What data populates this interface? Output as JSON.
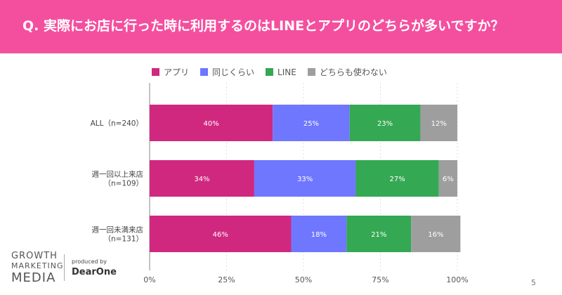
{
  "chart_data": {
    "type": "bar",
    "orientation": "horizontal",
    "stacked": true,
    "title": "Q. 実際にお店に行った時に利用するのはLINEとアプリのどちらが多いですか？",
    "categories": [
      "ALL（n=240）",
      "週一回以上来店\n（n=109）",
      "週一回未満来店\n（n=131）"
    ],
    "series": [
      {
        "name": "アプリ",
        "color": "#d0287f",
        "values": [
          40,
          34,
          46
        ]
      },
      {
        "name": "同じくらい",
        "color": "#6f77ff",
        "values": [
          25,
          33,
          18
        ]
      },
      {
        "name": "LINE",
        "color": "#34a853",
        "values": [
          23,
          27,
          21
        ]
      },
      {
        "name": "どちらも使わない",
        "color": "#9e9e9e",
        "values": [
          12,
          6,
          16
        ]
      }
    ],
    "xlim": [
      0,
      100
    ],
    "xticks": [
      "0%",
      "25%",
      "50%",
      "75%",
      "100%"
    ],
    "legend": "top"
  },
  "logo": {
    "line1": "GROWTH",
    "line2": "MARKETING",
    "line3": "MEDIA",
    "produced": "produced by",
    "brand": "DearOne"
  },
  "page_number": "5"
}
